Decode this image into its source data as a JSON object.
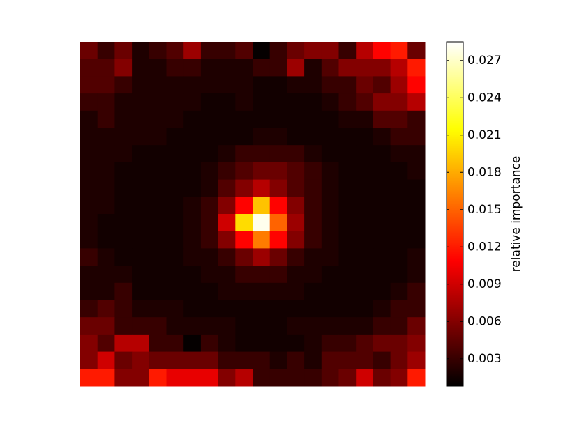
{
  "chart_data": {
    "type": "heatmap",
    "colormap": "hot",
    "colorbar_label": "relative importance",
    "clim": [
      0.0008,
      0.0285
    ],
    "cticks": [
      0.003,
      0.006,
      0.009,
      0.012,
      0.015,
      0.018,
      0.021,
      0.024,
      0.027
    ],
    "z": [
      [
        0.005,
        0.003,
        0.005,
        0.002,
        0.003,
        0.004,
        0.007,
        0.003,
        0.003,
        0.004,
        0.001,
        0.003,
        0.005,
        0.006,
        0.006,
        0.003,
        0.008,
        0.011,
        0.012,
        0.005
      ],
      [
        0.004,
        0.004,
        0.006,
        0.002,
        0.002,
        0.003,
        0.003,
        0.002,
        0.002,
        0.002,
        0.003,
        0.003,
        0.007,
        0.002,
        0.004,
        0.006,
        0.006,
        0.006,
        0.008,
        0.012
      ],
      [
        0.004,
        0.004,
        0.003,
        0.002,
        0.002,
        0.002,
        0.002,
        0.002,
        0.002,
        0.002,
        0.0015,
        0.0015,
        0.002,
        0.002,
        0.003,
        0.003,
        0.005,
        0.004,
        0.007,
        0.011
      ],
      [
        0.003,
        0.003,
        0.002,
        0.002,
        0.002,
        0.002,
        0.002,
        0.0015,
        0.0015,
        0.002,
        0.0015,
        0.0015,
        0.0015,
        0.0015,
        0.002,
        0.003,
        0.004,
        0.006,
        0.006,
        0.008
      ],
      [
        0.002,
        0.003,
        0.002,
        0.002,
        0.002,
        0.002,
        0.0015,
        0.0015,
        0.0015,
        0.0015,
        0.0015,
        0.0015,
        0.0015,
        0.0015,
        0.0015,
        0.002,
        0.002,
        0.004,
        0.004,
        0.003
      ],
      [
        0.002,
        0.002,
        0.002,
        0.002,
        0.002,
        0.0015,
        0.0015,
        0.0015,
        0.0015,
        0.0015,
        0.002,
        0.002,
        0.0015,
        0.0015,
        0.0015,
        0.0015,
        0.0015,
        0.002,
        0.003,
        0.003
      ],
      [
        0.002,
        0.002,
        0.002,
        0.0015,
        0.0015,
        0.0015,
        0.0015,
        0.0015,
        0.002,
        0.003,
        0.003,
        0.003,
        0.003,
        0.002,
        0.0015,
        0.0015,
        0.0015,
        0.0015,
        0.002,
        0.002
      ],
      [
        0.002,
        0.002,
        0.0015,
        0.0015,
        0.0015,
        0.0015,
        0.0015,
        0.002,
        0.003,
        0.004,
        0.005,
        0.005,
        0.004,
        0.003,
        0.002,
        0.0015,
        0.0015,
        0.0015,
        0.0015,
        0.002
      ],
      [
        0.002,
        0.002,
        0.0015,
        0.0015,
        0.0015,
        0.0015,
        0.0015,
        0.002,
        0.004,
        0.006,
        0.008,
        0.006,
        0.004,
        0.003,
        0.002,
        0.0015,
        0.0015,
        0.0015,
        0.0015,
        0.0015
      ],
      [
        0.002,
        0.002,
        0.0015,
        0.0015,
        0.0015,
        0.0015,
        0.002,
        0.003,
        0.006,
        0.011,
        0.019,
        0.011,
        0.006,
        0.003,
        0.002,
        0.0015,
        0.0015,
        0.0015,
        0.0015,
        0.0015
      ],
      [
        0.002,
        0.0015,
        0.0015,
        0.0015,
        0.0015,
        0.0015,
        0.002,
        0.003,
        0.009,
        0.02,
        0.028,
        0.015,
        0.007,
        0.003,
        0.002,
        0.0015,
        0.0015,
        0.0015,
        0.0015,
        0.0015
      ],
      [
        0.002,
        0.0015,
        0.0015,
        0.0015,
        0.0015,
        0.0015,
        0.002,
        0.003,
        0.006,
        0.011,
        0.016,
        0.011,
        0.006,
        0.003,
        0.002,
        0.0015,
        0.0015,
        0.0015,
        0.0015,
        0.0015
      ],
      [
        0.003,
        0.002,
        0.0015,
        0.0015,
        0.0015,
        0.0015,
        0.002,
        0.002,
        0.003,
        0.005,
        0.007,
        0.005,
        0.003,
        0.002,
        0.002,
        0.0015,
        0.0015,
        0.0015,
        0.0015,
        0.002
      ],
      [
        0.002,
        0.002,
        0.002,
        0.0015,
        0.0015,
        0.0015,
        0.0015,
        0.002,
        0.002,
        0.003,
        0.003,
        0.003,
        0.002,
        0.002,
        0.0015,
        0.0015,
        0.0015,
        0.0015,
        0.0015,
        0.002
      ],
      [
        0.002,
        0.002,
        0.003,
        0.0015,
        0.0015,
        0.0015,
        0.0015,
        0.0015,
        0.002,
        0.002,
        0.002,
        0.002,
        0.002,
        0.0015,
        0.0015,
        0.0015,
        0.0015,
        0.0015,
        0.002,
        0.003
      ],
      [
        0.003,
        0.004,
        0.003,
        0.002,
        0.002,
        0.002,
        0.0015,
        0.0015,
        0.0015,
        0.0015,
        0.0015,
        0.0015,
        0.0015,
        0.0015,
        0.0015,
        0.0015,
        0.0015,
        0.002,
        0.003,
        0.003
      ],
      [
        0.005,
        0.005,
        0.003,
        0.003,
        0.003,
        0.002,
        0.002,
        0.002,
        0.002,
        0.0015,
        0.0015,
        0.0015,
        0.002,
        0.002,
        0.002,
        0.002,
        0.002,
        0.003,
        0.003,
        0.005
      ],
      [
        0.006,
        0.004,
        0.008,
        0.008,
        0.003,
        0.003,
        0.001,
        0.003,
        0.002,
        0.0015,
        0.0015,
        0.0015,
        0.0015,
        0.002,
        0.003,
        0.003,
        0.004,
        0.005,
        0.005,
        0.006
      ],
      [
        0.006,
        0.009,
        0.005,
        0.006,
        0.005,
        0.005,
        0.005,
        0.005,
        0.003,
        0.003,
        0.003,
        0.002,
        0.003,
        0.002,
        0.004,
        0.004,
        0.004,
        0.003,
        0.005,
        0.007
      ],
      [
        0.012,
        0.012,
        0.006,
        0.006,
        0.012,
        0.01,
        0.01,
        0.01,
        0.006,
        0.008,
        0.003,
        0.003,
        0.003,
        0.003,
        0.004,
        0.005,
        0.009,
        0.005,
        0.006,
        0.012
      ]
    ]
  }
}
